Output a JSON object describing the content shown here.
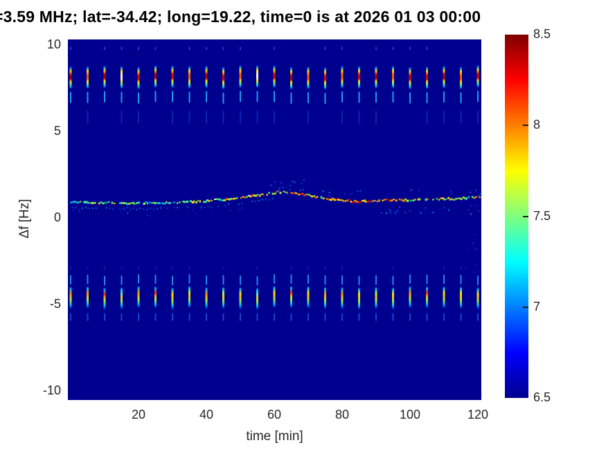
{
  "chart_data": {
    "type": "heatmap",
    "title": "=3.59 MHz;  lat=-34.42; long=19.22, time=0 is at 2026 01 03 00:00",
    "xlabel": "time [min]",
    "ylabel": "Δf [Hz]",
    "xlim": [
      -0.82,
      121.02
    ],
    "ylim": [
      -10.52,
      10.32
    ],
    "xticks": [
      20,
      40,
      60,
      80,
      100,
      120
    ],
    "yticks": [
      10,
      5,
      0,
      -5,
      -10
    ],
    "grid": false,
    "background_value": 6.5,
    "background_color": "#00008f",
    "colorbar": {
      "colormap": "jet",
      "min": 6.5,
      "max": 8.5,
      "tick_values": [
        8.5,
        8,
        7.5,
        7,
        6.5
      ],
      "tick_labels": [
        "8.5",
        "8",
        "7.5",
        "7",
        "6.5"
      ],
      "inner_tick_values": [
        8,
        7.5,
        7
      ]
    },
    "pulses": {
      "period_min": 5,
      "start_min": 0,
      "end_min": 120,
      "top_band": {
        "center_hz": 8.1,
        "main_extent_hz": [
          7.45,
          8.8
        ],
        "sub_dash_hz": [
          6.65,
          7.3
        ],
        "faint_dash_hz": [
          5.45,
          6.2
        ],
        "dot_hz": 9.9,
        "intensity": [
          0.97,
          0.75,
          0.99,
          0.5,
          0.9,
          0.96,
          0.88,
          0.72,
          0.97,
          0.86,
          0.78,
          0.52,
          0.9,
          0.96,
          0.8,
          0.88,
          0.74,
          0.87,
          0.96,
          0.76,
          0.9,
          0.86,
          0.97,
          0.74,
          0.9
        ]
      },
      "bottom_band": {
        "center_hz": -4.5,
        "main_extent_hz": [
          -5.3,
          -3.95
        ],
        "upper_dash_hz": [
          -3.85,
          -3.3
        ],
        "lower_dash_hz": [
          -5.95,
          -5.5
        ],
        "dot_hz": -2.8,
        "intensity": [
          0.78,
          0.8,
          0.93,
          0.4,
          0.78,
          0.92,
          0.62,
          0.56,
          0.88,
          0.6,
          0.72,
          0.45,
          0.66,
          0.92,
          0.7,
          0.78,
          0.85,
          0.62,
          0.5,
          0.66,
          0.8,
          0.92,
          0.62,
          0.72,
          0.7
        ]
      }
    },
    "doppler_trace": {
      "points": [
        [
          0,
          0.92
        ],
        [
          10,
          0.88
        ],
        [
          20,
          0.86
        ],
        [
          30,
          0.88
        ],
        [
          40,
          0.98
        ],
        [
          48,
          1.12
        ],
        [
          55,
          1.32
        ],
        [
          60,
          1.45
        ],
        [
          63,
          1.5
        ],
        [
          68,
          1.38
        ],
        [
          74,
          1.18
        ],
        [
          80,
          1.02
        ],
        [
          85,
          0.95
        ],
        [
          90,
          1.0
        ],
        [
          95,
          1.05
        ],
        [
          100,
          1.05
        ],
        [
          108,
          1.1
        ],
        [
          114,
          1.12
        ],
        [
          120,
          1.22
        ]
      ],
      "palette": [
        "#0fb4ff",
        "#00e0e0",
        "#3cff96",
        "#a0ff32",
        "#ffe400",
        "#ffa000",
        "#ff5000",
        "#e60000"
      ],
      "heat_segments": [
        [
          0,
          20,
          0.34
        ],
        [
          20,
          45,
          0.3
        ],
        [
          45,
          58,
          0.55
        ],
        [
          58,
          70,
          0.62
        ],
        [
          70,
          74,
          0.55
        ],
        [
          74,
          96,
          0.74
        ],
        [
          96,
          108,
          0.5
        ],
        [
          108,
          121,
          0.47
        ]
      ],
      "secondary_row": {
        "t_end": 62,
        "offset_hz": -0.24,
        "colors": [
          "#1e78ff",
          "#00c8ff"
        ]
      }
    },
    "speckle_clusters": [
      {
        "t": [
          58,
          70
        ],
        "hz": [
          1.6,
          2.3
        ],
        "n": 14,
        "colors": [
          "#1e5aff",
          "#00c8ff"
        ],
        "op": 0.8
      },
      {
        "t": [
          74,
          86
        ],
        "hz": [
          1.25,
          1.6
        ],
        "n": 8,
        "colors": [
          "#1e5aff",
          "#00c8ff"
        ],
        "op": 0.7
      },
      {
        "t": [
          88,
          121
        ],
        "hz": [
          0.25,
          0.8
        ],
        "n": 26,
        "colors": [
          "#1e50ff",
          "#00aaff"
        ],
        "op": 0.7
      },
      {
        "t": [
          0,
          30
        ],
        "hz": [
          0.15,
          0.7
        ],
        "n": 16,
        "colors": [
          "#1e50ff"
        ],
        "op": 0.55
      },
      {
        "t": [
          30,
          60
        ],
        "hz": [
          0.3,
          0.75
        ],
        "n": 10,
        "colors": [
          "#1e50ff"
        ],
        "op": 0.45
      },
      {
        "t": [
          116,
          121
        ],
        "hz": [
          -3.2,
          -0.8
        ],
        "n": 7,
        "colors": [
          "#1e50ff"
        ],
        "op": 0.5
      },
      {
        "t": [
          95,
          121
        ],
        "hz": [
          1.3,
          1.7
        ],
        "n": 8,
        "colors": [
          "#1e64ff",
          "#00c8ff"
        ],
        "op": 0.6
      }
    ]
  }
}
